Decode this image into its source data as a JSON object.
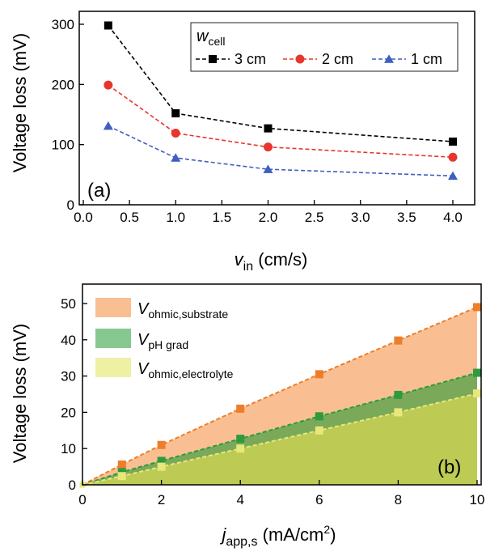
{
  "chart_data": [
    {
      "panel": "(a)",
      "type": "line",
      "ylabel": "Voltage loss (mV)",
      "xlabel_main": "v",
      "xlabel_sub": "in",
      "xlabel_unit": " (cm/s)",
      "xlim": [
        0,
        4.2
      ],
      "ylim": [
        0,
        320
      ],
      "xticks": [
        "0.0",
        "0.5",
        "1.0",
        "1.5",
        "2.0",
        "2.5",
        "3.0",
        "3.5",
        "4.0"
      ],
      "yticks": [
        "0",
        "100",
        "200",
        "300"
      ],
      "legend_title_main": "w",
      "legend_title_sub": "cell",
      "legend_position": "top-right",
      "x": [
        0.27,
        1.0,
        2.0,
        4.0
      ],
      "series": [
        {
          "name": "3 cm",
          "color": "#000000",
          "marker": "square",
          "values": [
            298,
            152,
            127,
            105
          ]
        },
        {
          "name": "2 cm",
          "color": "#e8352e",
          "marker": "circle",
          "values": [
            199,
            119,
            96,
            79
          ]
        },
        {
          "name": "1 cm",
          "color": "#3f5ebf",
          "marker": "triangle",
          "values": [
            131,
            78,
            59,
            48
          ]
        }
      ]
    },
    {
      "panel": "(b)",
      "type": "area",
      "ylabel": "Voltage loss (mV)",
      "xlabel_main": "j",
      "xlabel_sub": "app,s",
      "xlabel_unit": " (mA/cm",
      "xlabel_sup": "2",
      "xlabel_close": ")",
      "xlim": [
        0,
        10
      ],
      "ylim": [
        0,
        54
      ],
      "xticks": [
        "0",
        "2",
        "4",
        "6",
        "8",
        "10"
      ],
      "yticks": [
        "0",
        "10",
        "20",
        "30",
        "40",
        "50"
      ],
      "legend_position": "top-left",
      "x": [
        0,
        1,
        2,
        4,
        6,
        8,
        10
      ],
      "series": [
        {
          "name_main": "V",
          "name_sub": "ohmic,substrate",
          "fill": "#f9bf92",
          "line": "#ee7d2a",
          "values": [
            0,
            5.6,
            11,
            21,
            30.5,
            39.8,
            49
          ]
        },
        {
          "name_main": "V",
          "name_sub": "pH grad",
          "fill": "#7aa95a",
          "legend_fill": "#86c890",
          "line": "#2e9a3e",
          "values": [
            0,
            3.5,
            6.6,
            12.7,
            18.9,
            24.8,
            30.9
          ]
        },
        {
          "name_main": "V",
          "name_sub": "ohmic,electrolyte",
          "fill": "#bdcb55",
          "legend_fill": "#eef0a4",
          "line": "#e7e77a",
          "values": [
            0,
            2.4,
            5,
            10,
            15,
            20,
            25.2
          ]
        }
      ]
    }
  ]
}
